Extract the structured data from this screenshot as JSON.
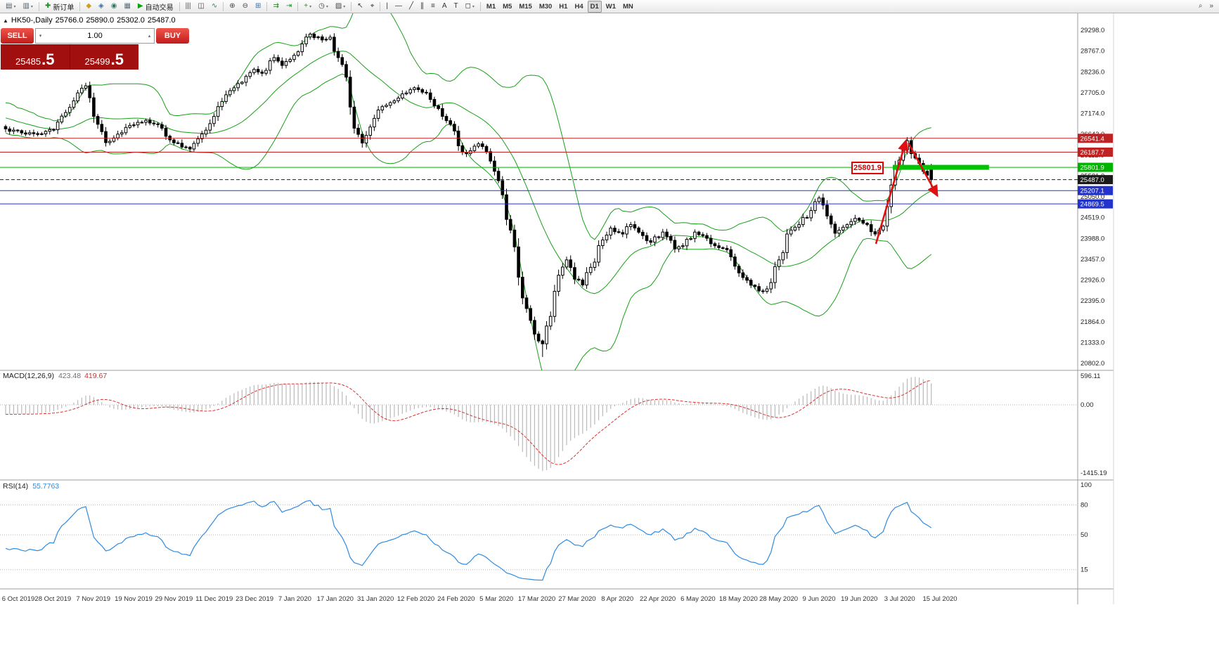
{
  "toolbar": {
    "items": [
      {
        "name": "new-chart-button",
        "glyph": "▤",
        "color": "#4e5d6a",
        "dropdown": true
      },
      {
        "name": "profiles-button",
        "glyph": "▥",
        "color": "#4e5d6a",
        "dropdown": true
      },
      {
        "type": "sep"
      },
      {
        "name": "new-order-button",
        "glyph": "✚",
        "color": "#1f8f1f",
        "label": "新订单"
      },
      {
        "type": "sep"
      },
      {
        "name": "market-watch-button",
        "glyph": "◆",
        "color": "#cfa11b"
      },
      {
        "name": "data-window-button",
        "glyph": "◈",
        "color": "#3a6ea5"
      },
      {
        "name": "navigator-button",
        "glyph": "◉",
        "color": "#2e7d5b"
      },
      {
        "name": "terminal-button",
        "glyph": "▦",
        "color": "#5a6b7a"
      },
      {
        "name": "autotrading-button",
        "glyph": "▶",
        "color": "#12a012",
        "label": "自动交易"
      },
      {
        "type": "sep"
      },
      {
        "name": "bar-chart-button",
        "glyph": "|||",
        "color": "#444"
      },
      {
        "name": "candlestick-chart-button",
        "glyph": "◫",
        "color": "#444"
      },
      {
        "name": "line-chart-button",
        "glyph": "∿",
        "color": "#2e7d5b"
      },
      {
        "type": "sep"
      },
      {
        "name": "zoom-in-button",
        "glyph": "⊕",
        "color": "#444"
      },
      {
        "name": "zoom-out-button",
        "glyph": "⊖",
        "color": "#444"
      },
      {
        "name": "tile-windows-button",
        "glyph": "⊞",
        "color": "#3a6ea5"
      },
      {
        "type": "sep"
      },
      {
        "name": "auto-scroll-button",
        "glyph": "⇉",
        "color": "#1f8f1f"
      },
      {
        "name": "chart-shift-button",
        "glyph": "⇥",
        "color": "#1f8f1f"
      },
      {
        "type": "sep"
      },
      {
        "name": "indicators-button",
        "glyph": "+",
        "color": "#18a018",
        "dropdown": true
      },
      {
        "name": "periods-button",
        "glyph": "◷",
        "color": "#444",
        "dropdown": true
      },
      {
        "name": "templates-button",
        "glyph": "▨",
        "color": "#444",
        "dropdown": true
      },
      {
        "type": "sep"
      },
      {
        "name": "cursor-button",
        "glyph": "↖",
        "color": "#333"
      },
      {
        "name": "crosshair-button",
        "glyph": "⌖",
        "color": "#333"
      },
      {
        "type": "sep"
      },
      {
        "name": "vertical-line-button",
        "glyph": "|",
        "color": "#333"
      },
      {
        "name": "horizontal-line-button",
        "glyph": "—",
        "color": "#333"
      },
      {
        "name": "trendline-button",
        "glyph": "╱",
        "color": "#333"
      },
      {
        "name": "channel-button",
        "glyph": "∥",
        "color": "#333"
      },
      {
        "name": "fibonacci-button",
        "glyph": "≡",
        "color": "#333"
      },
      {
        "name": "text-button",
        "glyph": "A",
        "color": "#333"
      },
      {
        "name": "text-label-button",
        "glyph": "T",
        "color": "#333"
      },
      {
        "name": "shapes-button",
        "glyph": "◻",
        "color": "#333",
        "dropdown": true
      },
      {
        "type": "sep"
      },
      {
        "name": "tf-m1-button",
        "label": "M1",
        "tf": true
      },
      {
        "name": "tf-m5-button",
        "label": "M5",
        "tf": true
      },
      {
        "name": "tf-m15-button",
        "label": "M15",
        "tf": true
      },
      {
        "name": "tf-m30-button",
        "label": "M30",
        "tf": true
      },
      {
        "name": "tf-h1-button",
        "label": "H1",
        "tf": true
      },
      {
        "name": "tf-h4-button",
        "label": "H4",
        "tf": true
      },
      {
        "name": "tf-d1-button",
        "label": "D1",
        "tf": true,
        "active": true
      },
      {
        "name": "tf-w1-button",
        "label": "W1",
        "tf": true
      },
      {
        "name": "tf-mn-button",
        "label": "MN",
        "tf": true
      },
      {
        "name": "search-button",
        "glyph": "⌕",
        "color": "#444",
        "right": true
      },
      {
        "name": "toolbar-overflow-button",
        "glyph": "»",
        "color": "#444"
      }
    ]
  },
  "symbol_line": {
    "symbol": "HK50-,Daily",
    "open": "25766.0",
    "high": "25890.0",
    "low": "25302.0",
    "close": "25487.0"
  },
  "trade_panel": {
    "sell_label": "SELL",
    "buy_label": "BUY",
    "volume": "1.00",
    "sell_price": {
      "main": "25485",
      "fraction": ".5"
    },
    "buy_price": {
      "main": "25499",
      "fraction": ".5"
    }
  },
  "chart_data": {
    "type": "candlestick",
    "symbol": "HK50-",
    "timeframe": "Daily",
    "ohlc_current": {
      "open": 25766.0,
      "high": 25890.0,
      "low": 25302.0,
      "close": 25487.0
    },
    "price_axis_labels": [
      "29298.0",
      "28767.0",
      "28236.0",
      "27705.0",
      "27174.0",
      "26643.0",
      "26112.0",
      "25581.0",
      "25050.0",
      "24519.0",
      "23988.0",
      "23457.0",
      "22926.0",
      "22395.0",
      "21864.0",
      "21333.0",
      "20802.0"
    ],
    "x_axis_date_labels": [
      "6 Oct 2019",
      "28 Oct 2019",
      "7 Nov 2019",
      "19 Nov 2019",
      "29 Nov 2019",
      "11 Dec 2019",
      "23 Dec 2019",
      "7 Jan 2020",
      "17 Jan 2020",
      "31 Jan 2020",
      "12 Feb 2020",
      "24 Feb 2020",
      "5 Mar 2020",
      "17 Mar 2020",
      "27 Mar 2020",
      "8 Apr 2020",
      "22 Apr 2020",
      "6 May 2020",
      "18 May 2020",
      "28 May 2020",
      "9 Jun 2020",
      "19 Jun 2020",
      "3 Jul 2020",
      "15 Jul 2020"
    ],
    "candles": {
      "count": 232,
      "close_anchors": [
        [
          0,
          26780
        ],
        [
          4,
          26680
        ],
        [
          8,
          26640
        ],
        [
          12,
          26760
        ],
        [
          15,
          27200
        ],
        [
          18,
          27700
        ],
        [
          20,
          27880
        ],
        [
          22,
          27100
        ],
        [
          25,
          26430
        ],
        [
          27,
          26550
        ],
        [
          30,
          26820
        ],
        [
          33,
          26950
        ],
        [
          35,
          27000
        ],
        [
          39,
          26800
        ],
        [
          41,
          26500
        ],
        [
          44,
          26320
        ],
        [
          46,
          26270
        ],
        [
          49,
          26650
        ],
        [
          52,
          27100
        ],
        [
          54,
          27480
        ],
        [
          57,
          27830
        ],
        [
          60,
          28120
        ],
        [
          62,
          28300
        ],
        [
          64,
          28200
        ],
        [
          67,
          28600
        ],
        [
          69,
          28400
        ],
        [
          71,
          28550
        ],
        [
          74,
          28950
        ],
        [
          76,
          29200
        ],
        [
          79,
          29050
        ],
        [
          81,
          29120
        ],
        [
          83,
          28600
        ],
        [
          85,
          28100
        ],
        [
          87,
          26800
        ],
        [
          89,
          26420
        ],
        [
          92,
          27050
        ],
        [
          94,
          27350
        ],
        [
          97,
          27500
        ],
        [
          100,
          27700
        ],
        [
          102,
          27830
        ],
        [
          105,
          27700
        ],
        [
          108,
          27300
        ],
        [
          111,
          26900
        ],
        [
          113,
          26350
        ],
        [
          115,
          26150
        ],
        [
          118,
          26400
        ],
        [
          120,
          26200
        ],
        [
          122,
          25700
        ],
        [
          124,
          25100
        ],
        [
          126,
          24200
        ],
        [
          128,
          23000
        ],
        [
          130,
          22200
        ],
        [
          132,
          21550
        ],
        [
          134,
          21300
        ],
        [
          136,
          22000
        ],
        [
          138,
          23050
        ],
        [
          140,
          23440
        ],
        [
          142,
          22950
        ],
        [
          144,
          22800
        ],
        [
          146,
          23250
        ],
        [
          149,
          23950
        ],
        [
          151,
          24250
        ],
        [
          154,
          24100
        ],
        [
          156,
          24340
        ],
        [
          159,
          24060
        ],
        [
          161,
          23890
        ],
        [
          164,
          24150
        ],
        [
          167,
          23720
        ],
        [
          169,
          23800
        ],
        [
          172,
          24150
        ],
        [
          174,
          24060
        ],
        [
          177,
          23800
        ],
        [
          180,
          23700
        ],
        [
          182,
          23280
        ],
        [
          185,
          22920
        ],
        [
          188,
          22650
        ],
        [
          190,
          22700
        ],
        [
          193,
          23440
        ],
        [
          195,
          24100
        ],
        [
          198,
          24340
        ],
        [
          201,
          24700
        ],
        [
          203,
          25020
        ],
        [
          205,
          24560
        ],
        [
          207,
          24120
        ],
        [
          210,
          24340
        ],
        [
          212,
          24500
        ],
        [
          215,
          24340
        ],
        [
          217,
          24100
        ],
        [
          219,
          24300
        ],
        [
          220,
          24800
        ],
        [
          221,
          25350
        ],
        [
          222,
          25800
        ],
        [
          224,
          26250
        ],
        [
          225,
          26480
        ],
        [
          226,
          26150
        ],
        [
          228,
          25900
        ],
        [
          229,
          25700
        ],
        [
          230,
          25600
        ],
        [
          231,
          25487
        ]
      ],
      "last_ohlc": [
        25766.0,
        25890.0,
        25302.0,
        25487.0
      ],
      "min_low": 20965
    },
    "indicators": {
      "bollinger": {
        "period": 20,
        "deviation": 2,
        "color": "#18a018"
      },
      "macd": {
        "label": "MACD(12,26,9)",
        "values": [
          "423.48",
          "419.67"
        ],
        "axis_labels": [
          "596.11",
          "0.00",
          "-1415.19"
        ],
        "histogram_color": "#bababa",
        "signal_color": "#e03030"
      },
      "rsi": {
        "label": "RSI(14)",
        "value": "55.7763",
        "levels": [
          80,
          50,
          15
        ],
        "axis_labels": [
          "100",
          "80",
          "50",
          "15"
        ],
        "line_color": "#2f8be0"
      }
    },
    "hlines": [
      {
        "price": 26541.4,
        "label": "26541.4",
        "color": "#bf2222",
        "style": "solid"
      },
      {
        "price": 26187.7,
        "label": "26187.7",
        "color": "#bf2222",
        "style": "solid"
      },
      {
        "price": 25801.9,
        "label": "25801.9",
        "color": "#00b300",
        "style": "solid",
        "thick_segment": {
          "from_bar": 221.4,
          "to_bar": 245.4,
          "color": "#00c400"
        }
      },
      {
        "price": 25487.0,
        "label": "25487.0",
        "color": "#1a1a1a",
        "style": "dash"
      },
      {
        "price": 25207.1,
        "label": "25207.1",
        "color": "#2233cc",
        "style": "solid"
      },
      {
        "price": 24869.5,
        "label": "24869.5",
        "color": "#2233cc",
        "style": "solid"
      }
    ],
    "annotations": {
      "price_callout": {
        "text": "25801.9",
        "color": "#e00000",
        "price": 25801.9
      },
      "arrows": [
        {
          "dir": "up",
          "from_bar": 217.2,
          "from_price": 23850,
          "to_bar": 224.7,
          "to_price": 26484,
          "color": "#e01010"
        },
        {
          "dir": "down",
          "from_bar": 225.3,
          "from_price": 26420,
          "to_bar": 232.5,
          "to_price": 25080,
          "color": "#e01010"
        }
      ]
    }
  }
}
